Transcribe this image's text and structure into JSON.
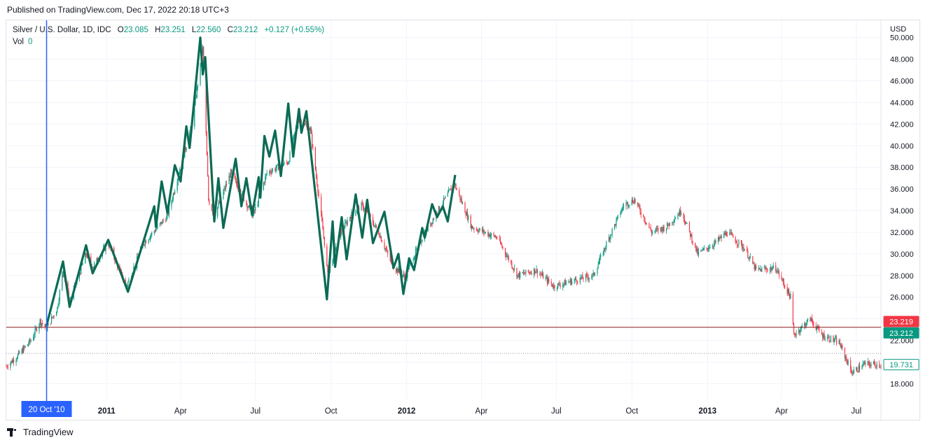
{
  "header": {
    "published": "Published on TradingView.com, Dec 17, 2022 20:18 UTC+3"
  },
  "legend": {
    "symbol": "Silver / U.S. Dollar, 1D, IDC",
    "open_label": "O",
    "open": "23.085",
    "high_label": "H",
    "high": "23.251",
    "low_label": "L",
    "low": "22.560",
    "close_label": "C",
    "close": "23.212",
    "change": "+0.127 (+0.55%)",
    "vol_label": "Vol",
    "vol": "0"
  },
  "footer": {
    "brand": "TradingView"
  },
  "colors": {
    "up": "#089981",
    "down": "#f23645",
    "zigzag": "#0b6b55",
    "cursor": "#2962ff",
    "grid": "#f0f3fa",
    "hline": "#8e1b1b"
  },
  "chart_data": {
    "type": "line",
    "title": "Silver / U.S. Dollar, 1D, IDC",
    "currency_label": "USD",
    "ylim": [
      16.6,
      51.6
    ],
    "y_ticks": [
      "18.000",
      "20.000",
      "22.000",
      "24.000",
      "26.000",
      "28.000",
      "30.000",
      "32.000",
      "34.000",
      "36.000",
      "38.000",
      "40.000",
      "42.000",
      "44.000",
      "46.000",
      "48.000",
      "50.000"
    ],
    "x_ticks": [
      {
        "label": "2011",
        "date": "2011-01-01",
        "bold": true
      },
      {
        "label": "Apr",
        "date": "2011-04-01",
        "bold": false
      },
      {
        "label": "Jul",
        "date": "2011-07-01",
        "bold": false
      },
      {
        "label": "Oct",
        "date": "2011-10-01",
        "bold": false
      },
      {
        "label": "2012",
        "date": "2012-01-01",
        "bold": true
      },
      {
        "label": "Apr",
        "date": "2012-04-01",
        "bold": false
      },
      {
        "label": "Jul",
        "date": "2012-07-01",
        "bold": false
      },
      {
        "label": "Oct",
        "date": "2012-10-01",
        "bold": false
      },
      {
        "label": "2013",
        "date": "2013-01-01",
        "bold": true
      },
      {
        "label": "Apr",
        "date": "2013-04-01",
        "bold": false
      },
      {
        "label": "Jul",
        "date": "2013-07-01",
        "bold": false
      }
    ],
    "x_range": [
      "2010-09-01",
      "2013-07-31"
    ],
    "cursor": {
      "date": "2010-10-20",
      "label": "20 Oct '10"
    },
    "price_lines": [
      {
        "value": 23.219,
        "label": "23.219",
        "style": "solid-red"
      },
      {
        "value": 23.212,
        "label": "23.212",
        "style": "green-tag"
      },
      {
        "value": 20.8,
        "label": "",
        "style": "dotted"
      },
      {
        "value": 19.731,
        "label": "19.731",
        "style": "outline-tag"
      }
    ],
    "series": [
      {
        "style": "candles-approx",
        "points": [
          {
            "x": "2010-09-01",
            "y": 19.6
          },
          {
            "x": "2010-09-15",
            "y": 20.6
          },
          {
            "x": "2010-10-01",
            "y": 22.0
          },
          {
            "x": "2010-10-12",
            "y": 23.8
          },
          {
            "x": "2010-10-20",
            "y": 23.1
          },
          {
            "x": "2010-11-02",
            "y": 25.0
          },
          {
            "x": "2010-11-09",
            "y": 28.5
          },
          {
            "x": "2010-11-17",
            "y": 25.5
          },
          {
            "x": "2010-12-07",
            "y": 30.0
          },
          {
            "x": "2010-12-15",
            "y": 28.8
          },
          {
            "x": "2011-01-03",
            "y": 31.0
          },
          {
            "x": "2011-01-25",
            "y": 27.0
          },
          {
            "x": "2011-02-15",
            "y": 31.0
          },
          {
            "x": "2011-03-16",
            "y": 33.5
          },
          {
            "x": "2011-03-30",
            "y": 37.5
          },
          {
            "x": "2011-04-15",
            "y": 42.0
          },
          {
            "x": "2011-04-28",
            "y": 49.0
          },
          {
            "x": "2011-05-05",
            "y": 35.0
          },
          {
            "x": "2011-05-12",
            "y": 33.5
          },
          {
            "x": "2011-06-01",
            "y": 37.5
          },
          {
            "x": "2011-06-28",
            "y": 33.5
          },
          {
            "x": "2011-07-15",
            "y": 37.5
          },
          {
            "x": "2011-08-10",
            "y": 38.5
          },
          {
            "x": "2011-08-22",
            "y": 42.5
          },
          {
            "x": "2011-09-06",
            "y": 41.5
          },
          {
            "x": "2011-09-23",
            "y": 31.0
          },
          {
            "x": "2011-09-27",
            "y": 28.0
          },
          {
            "x": "2011-10-10",
            "y": 31.5
          },
          {
            "x": "2011-10-24",
            "y": 33.5
          },
          {
            "x": "2011-11-08",
            "y": 34.5
          },
          {
            "x": "2011-11-28",
            "y": 32.0
          },
          {
            "x": "2011-12-14",
            "y": 29.0
          },
          {
            "x": "2011-12-29",
            "y": 27.9
          },
          {
            "x": "2012-01-20",
            "y": 31.5
          },
          {
            "x": "2012-02-08",
            "y": 34.0
          },
          {
            "x": "2012-02-28",
            "y": 36.5
          },
          {
            "x": "2012-03-20",
            "y": 32.5
          },
          {
            "x": "2012-04-20",
            "y": 31.5
          },
          {
            "x": "2012-05-15",
            "y": 28.0
          },
          {
            "x": "2012-06-06",
            "y": 28.5
          },
          {
            "x": "2012-06-28",
            "y": 27.0
          },
          {
            "x": "2012-07-20",
            "y": 27.5
          },
          {
            "x": "2012-08-15",
            "y": 28.0
          },
          {
            "x": "2012-09-06",
            "y": 32.0
          },
          {
            "x": "2012-09-21",
            "y": 34.5
          },
          {
            "x": "2012-10-04",
            "y": 35.0
          },
          {
            "x": "2012-10-25",
            "y": 32.0
          },
          {
            "x": "2012-11-12",
            "y": 32.5
          },
          {
            "x": "2012-11-30",
            "y": 34.0
          },
          {
            "x": "2012-12-20",
            "y": 30.0
          },
          {
            "x": "2013-01-10",
            "y": 31.0
          },
          {
            "x": "2013-01-25",
            "y": 32.0
          },
          {
            "x": "2013-02-15",
            "y": 30.5
          },
          {
            "x": "2013-03-01",
            "y": 28.5
          },
          {
            "x": "2013-03-25",
            "y": 28.7
          },
          {
            "x": "2013-04-12",
            "y": 26.0
          },
          {
            "x": "2013-04-16",
            "y": 22.5
          },
          {
            "x": "2013-05-06",
            "y": 24.0
          },
          {
            "x": "2013-05-20",
            "y": 22.5
          },
          {
            "x": "2013-06-10",
            "y": 21.8
          },
          {
            "x": "2013-06-26",
            "y": 19.0
          },
          {
            "x": "2013-07-10",
            "y": 19.8
          },
          {
            "x": "2013-07-25",
            "y": 19.8
          }
        ]
      },
      {
        "style": "zigzag",
        "points": [
          {
            "x": "2010-10-20",
            "y": 23.4
          },
          {
            "x": "2010-11-09",
            "y": 29.3
          },
          {
            "x": "2010-11-17",
            "y": 25.1
          },
          {
            "x": "2010-12-07",
            "y": 30.8
          },
          {
            "x": "2010-12-15",
            "y": 28.2
          },
          {
            "x": "2011-01-03",
            "y": 31.3
          },
          {
            "x": "2011-01-27",
            "y": 26.5
          },
          {
            "x": "2011-02-28",
            "y": 34.4
          },
          {
            "x": "2011-03-02",
            "y": 32.5
          },
          {
            "x": "2011-03-09",
            "y": 36.7
          },
          {
            "x": "2011-03-16",
            "y": 33.8
          },
          {
            "x": "2011-03-25",
            "y": 38.2
          },
          {
            "x": "2011-04-01",
            "y": 36.7
          },
          {
            "x": "2011-04-08",
            "y": 41.8
          },
          {
            "x": "2011-04-12",
            "y": 39.8
          },
          {
            "x": "2011-04-25",
            "y": 50.0
          },
          {
            "x": "2011-04-28",
            "y": 46.6
          },
          {
            "x": "2011-05-01",
            "y": 48.2
          },
          {
            "x": "2011-05-12",
            "y": 33.0
          },
          {
            "x": "2011-05-17",
            "y": 37.0
          },
          {
            "x": "2011-05-23",
            "y": 32.4
          },
          {
            "x": "2011-06-07",
            "y": 38.8
          },
          {
            "x": "2011-06-14",
            "y": 34.4
          },
          {
            "x": "2011-06-20",
            "y": 37.0
          },
          {
            "x": "2011-06-27",
            "y": 33.6
          },
          {
            "x": "2011-07-05",
            "y": 37.1
          },
          {
            "x": "2011-07-07",
            "y": 35.2
          },
          {
            "x": "2011-07-12",
            "y": 40.9
          },
          {
            "x": "2011-07-18",
            "y": 39.0
          },
          {
            "x": "2011-07-25",
            "y": 41.4
          },
          {
            "x": "2011-08-01",
            "y": 37.2
          },
          {
            "x": "2011-08-10",
            "y": 43.9
          },
          {
            "x": "2011-08-16",
            "y": 39.0
          },
          {
            "x": "2011-08-23",
            "y": 43.4
          },
          {
            "x": "2011-08-26",
            "y": 41.2
          },
          {
            "x": "2011-09-01",
            "y": 43.2
          },
          {
            "x": "2011-09-26",
            "y": 25.8
          },
          {
            "x": "2011-10-03",
            "y": 33.0
          },
          {
            "x": "2011-10-06",
            "y": 28.8
          },
          {
            "x": "2011-10-14",
            "y": 33.4
          },
          {
            "x": "2011-10-20",
            "y": 29.5
          },
          {
            "x": "2011-10-31",
            "y": 35.5
          },
          {
            "x": "2011-11-08",
            "y": 31.5
          },
          {
            "x": "2011-11-14",
            "y": 35.0
          },
          {
            "x": "2011-11-21",
            "y": 31.0
          },
          {
            "x": "2011-12-05",
            "y": 33.9
          },
          {
            "x": "2011-12-16",
            "y": 28.7
          },
          {
            "x": "2011-12-22",
            "y": 30.0
          },
          {
            "x": "2011-12-28",
            "y": 26.3
          },
          {
            "x": "2012-01-04",
            "y": 29.6
          },
          {
            "x": "2012-01-10",
            "y": 28.5
          },
          {
            "x": "2012-01-20",
            "y": 32.4
          },
          {
            "x": "2012-01-23",
            "y": 31.5
          },
          {
            "x": "2012-02-01",
            "y": 34.6
          },
          {
            "x": "2012-02-07",
            "y": 33.4
          },
          {
            "x": "2012-02-14",
            "y": 34.4
          },
          {
            "x": "2012-02-20",
            "y": 33.0
          },
          {
            "x": "2012-02-29",
            "y": 37.3
          }
        ]
      }
    ],
    "candle_overlays": [
      {
        "start": "2010-10-20",
        "end": "2012-02-29"
      }
    ]
  }
}
